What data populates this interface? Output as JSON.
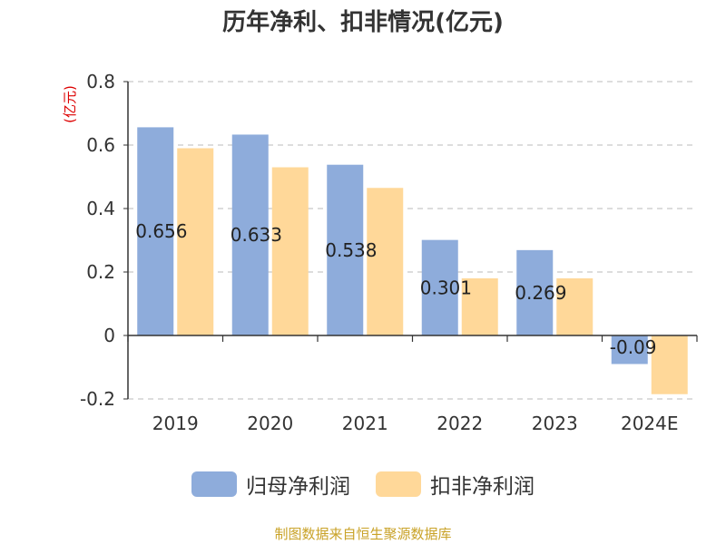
{
  "chart_data": {
    "type": "bar",
    "title": "历年净利、扣非情况(亿元)",
    "ylabel": "(亿元)",
    "categories": [
      "2019",
      "2020",
      "2021",
      "2022",
      "2023",
      "2024E"
    ],
    "series": [
      {
        "name": "归母净利润",
        "color": "#8eacdb",
        "values": [
          0.656,
          0.633,
          0.538,
          0.301,
          0.269,
          -0.09
        ],
        "labels": [
          "0.656",
          "0.633",
          "0.538",
          "0.301",
          "0.269",
          "-0.09"
        ]
      },
      {
        "name": "扣非净利润",
        "color": "#ffd899",
        "values": [
          0.59,
          0.53,
          0.465,
          0.18,
          0.18,
          -0.185
        ]
      }
    ],
    "ylim": [
      -0.2,
      0.8
    ],
    "yticks": [
      -0.2,
      0,
      0.2,
      0.4,
      0.6,
      0.8
    ],
    "ytick_labels": [
      "-0.2",
      "0",
      "0.2",
      "0.4",
      "0.6",
      "0.8"
    ],
    "grid": true,
    "legend": "bottom"
  },
  "source_text": "制图数据来自恒生聚源数据库"
}
